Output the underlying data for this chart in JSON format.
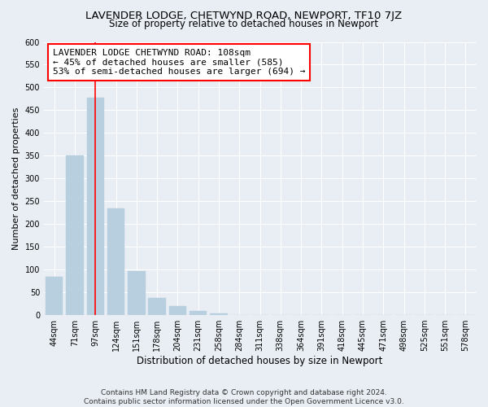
{
  "title": "LAVENDER LODGE, CHETWYND ROAD, NEWPORT, TF10 7JZ",
  "subtitle": "Size of property relative to detached houses in Newport",
  "xlabel": "Distribution of detached houses by size in Newport",
  "ylabel": "Number of detached properties",
  "bar_labels": [
    "44sqm",
    "71sqm",
    "97sqm",
    "124sqm",
    "151sqm",
    "178sqm",
    "204sqm",
    "231sqm",
    "258sqm",
    "284sqm",
    "311sqm",
    "338sqm",
    "364sqm",
    "391sqm",
    "418sqm",
    "445sqm",
    "471sqm",
    "498sqm",
    "525sqm",
    "551sqm",
    "578sqm"
  ],
  "bar_values": [
    84,
    350,
    478,
    235,
    97,
    37,
    20,
    9,
    3,
    1,
    0,
    0,
    0,
    0,
    1,
    0,
    0,
    0,
    0,
    1,
    1
  ],
  "bar_color": "#b8cfe0",
  "bar_edge_color": "#b8cfe0",
  "vline_x": 2,
  "vline_color": "red",
  "vline_linewidth": 1.2,
  "annotation_line1": "LAVENDER LODGE CHETWYND ROAD: 108sqm",
  "annotation_line2": "← 45% of detached houses are smaller (585)",
  "annotation_line3": "53% of semi-detached houses are larger (694) →",
  "ylim": [
    0,
    600
  ],
  "yticks": [
    0,
    50,
    100,
    150,
    200,
    250,
    300,
    350,
    400,
    450,
    500,
    550,
    600
  ],
  "footer_line1": "Contains HM Land Registry data © Crown copyright and database right 2024.",
  "footer_line2": "Contains public sector information licensed under the Open Government Licence v3.0.",
  "bg_color": "#e8eef4",
  "grid_color": "white",
  "title_fontsize": 9.5,
  "subtitle_fontsize": 8.5,
  "ylabel_fontsize": 8,
  "xlabel_fontsize": 8.5,
  "tick_fontsize": 7,
  "annotation_fontsize": 8,
  "footer_fontsize": 6.5
}
